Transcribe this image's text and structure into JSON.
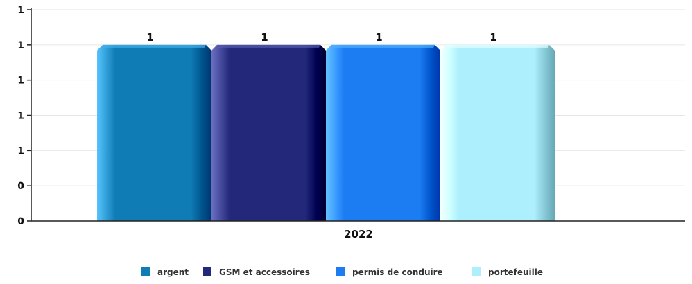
{
  "chart_data": {
    "type": "bar",
    "categories": [
      "2022"
    ],
    "series": [
      {
        "name": "argent",
        "values": [
          1
        ],
        "color": "#0F7CB6"
      },
      {
        "name": "GSM et accessoires",
        "values": [
          1
        ],
        "color": "#23287A"
      },
      {
        "name": "permis de conduire",
        "values": [
          1
        ],
        "color": "#1C7CF2"
      },
      {
        "name": "portefeuille",
        "values": [
          1
        ],
        "color": "#AEEFFD"
      }
    ],
    "data_labels": [
      "1",
      "1",
      "1",
      "1"
    ],
    "y_ticks": [
      "0",
      "0",
      "1",
      "1",
      "1",
      "1",
      "1"
    ],
    "y_tick_values": [
      0,
      0.2,
      0.4,
      0.6,
      0.8,
      1.0,
      1.2
    ],
    "ylim": [
      0,
      1.2
    ],
    "title": "",
    "xlabel": "",
    "ylabel": "",
    "grid": true,
    "legend": "bottom-center"
  }
}
